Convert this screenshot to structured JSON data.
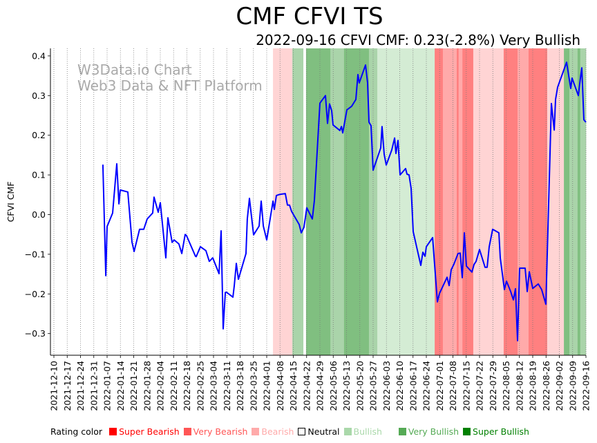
{
  "chart_data": {
    "type": "line",
    "title": "CMF CFVI TS",
    "subtitle": "2022-09-16 CFVI CMF: 0.23(-2.8%) Very Bullish",
    "watermark": [
      "W3Data.io Chart",
      "Web3 Data & NFT Platform"
    ],
    "ylabel": "CFVI CMF",
    "xlabel": "",
    "ylim": [
      -0.355,
      0.418
    ],
    "yticks": [
      "0.4",
      "0.3",
      "0.2",
      "0.1",
      "0.0",
      "−0.1",
      "−0.2",
      "−0.3"
    ],
    "ytick_values": [
      0.4,
      0.3,
      0.2,
      0.1,
      0.0,
      -0.1,
      -0.2,
      -0.3
    ],
    "x_origin": "2021-12-10",
    "x_unit": "days since x_origin",
    "xlim": [
      -1.8,
      280
    ],
    "xticks": [
      "2021-12-10",
      "2021-12-17",
      "2021-12-24",
      "2021-12-31",
      "2022-01-07",
      "2022-01-14",
      "2022-01-21",
      "2022-01-28",
      "2022-02-04",
      "2022-02-11",
      "2022-02-18",
      "2022-02-25",
      "2022-03-04",
      "2022-03-11",
      "2022-03-18",
      "2022-03-25",
      "2022-04-01",
      "2022-04-08",
      "2022-04-15",
      "2022-04-22",
      "2022-04-29",
      "2022-05-06",
      "2022-05-13",
      "2022-05-20",
      "2022-05-27",
      "2022-06-03",
      "2022-06-10",
      "2022-06-17",
      "2022-06-24",
      "2022-07-01",
      "2022-07-08",
      "2022-07-15",
      "2022-07-22",
      "2022-07-29",
      "2022-08-05",
      "2022-08-12",
      "2022-08-19",
      "2022-08-26",
      "2022-09-02",
      "2022-09-09",
      "2022-09-16"
    ],
    "xgrid": "dotted vertical",
    "series": [
      {
        "name": "CFVI CMF",
        "color": "#0000ff",
        "points": [
          [
            25.8,
            0.126
          ],
          [
            27.3,
            -0.154
          ],
          [
            28,
            -0.03
          ],
          [
            30.9,
            0.004
          ],
          [
            33.1,
            0.128
          ],
          [
            34.2,
            0.027
          ],
          [
            34.9,
            0.062
          ],
          [
            38.9,
            0.057
          ],
          [
            41.1,
            -0.069
          ],
          [
            42.2,
            -0.093
          ],
          [
            45.1,
            -0.037
          ],
          [
            47.3,
            -0.037
          ],
          [
            49.1,
            -0.011
          ],
          [
            52,
            0.004
          ],
          [
            52.7,
            0.044
          ],
          [
            54.9,
            0.006
          ],
          [
            56,
            0.03
          ],
          [
            58.9,
            -0.109
          ],
          [
            60,
            -0.008
          ],
          [
            62.2,
            -0.07
          ],
          [
            63.3,
            -0.064
          ],
          [
            65.8,
            -0.074
          ],
          [
            67.3,
            -0.098
          ],
          [
            69.1,
            -0.05
          ],
          [
            69.8,
            -0.053
          ],
          [
            74.5,
            -0.105
          ],
          [
            74.9,
            -0.106
          ],
          [
            77.1,
            -0.081
          ],
          [
            80,
            -0.091
          ],
          [
            81.8,
            -0.118
          ],
          [
            83.6,
            -0.109
          ],
          [
            86.9,
            -0.149
          ],
          [
            88,
            -0.041
          ],
          [
            89.1,
            -0.288
          ],
          [
            90.2,
            -0.196
          ],
          [
            90.9,
            -0.196
          ],
          [
            94.2,
            -0.208
          ],
          [
            94.9,
            -0.18
          ],
          [
            96,
            -0.123
          ],
          [
            97.1,
            -0.163
          ],
          [
            101.1,
            -0.098
          ],
          [
            101.8,
            -0.011
          ],
          [
            102.9,
            0.041
          ],
          [
            105.1,
            -0.051
          ],
          [
            108,
            -0.029
          ],
          [
            109.1,
            0.034
          ],
          [
            110.2,
            -0.029
          ],
          [
            112,
            -0.064
          ],
          [
            115.3,
            0.034
          ],
          [
            116,
            0.013
          ],
          [
            117.1,
            0.048
          ],
          [
            118.9,
            0.051
          ],
          [
            121.8,
            0.053
          ],
          [
            122.9,
            0.024
          ],
          [
            124,
            0.024
          ],
          [
            125.1,
            0.008
          ],
          [
            129.1,
            -0.025
          ],
          [
            130.2,
            -0.046
          ],
          [
            131.6,
            -0.032
          ],
          [
            133.1,
            0.017
          ],
          [
            136,
            -0.011
          ],
          [
            137.1,
            0.036
          ],
          [
            140,
            0.281
          ],
          [
            142.9,
            0.3
          ],
          [
            144,
            0.23
          ],
          [
            145.1,
            0.279
          ],
          [
            146.2,
            0.262
          ],
          [
            146.9,
            0.226
          ],
          [
            150.5,
            0.212
          ],
          [
            151.3,
            0.222
          ],
          [
            152,
            0.206
          ],
          [
            154.2,
            0.264
          ],
          [
            156.7,
            0.273
          ],
          [
            158.9,
            0.29
          ],
          [
            160,
            0.353
          ],
          [
            160.7,
            0.332
          ],
          [
            164,
            0.377
          ],
          [
            165.1,
            0.332
          ],
          [
            165.8,
            0.233
          ],
          [
            166.9,
            0.224
          ],
          [
            168,
            0.112
          ],
          [
            172,
            0.168
          ],
          [
            172.7,
            0.222
          ],
          [
            173.8,
            0.152
          ],
          [
            174.9,
            0.125
          ],
          [
            177.8,
            0.163
          ],
          [
            179.3,
            0.193
          ],
          [
            180,
            0.154
          ],
          [
            181.1,
            0.187
          ],
          [
            182.2,
            0.1
          ],
          [
            185.1,
            0.116
          ],
          [
            185.8,
            0.102
          ],
          [
            186.9,
            0.1
          ],
          [
            188,
            0.066
          ],
          [
            189.1,
            -0.043
          ],
          [
            193.1,
            -0.128
          ],
          [
            194.2,
            -0.095
          ],
          [
            195.3,
            -0.105
          ],
          [
            196,
            -0.081
          ],
          [
            199.3,
            -0.058
          ],
          [
            201.8,
            -0.22
          ],
          [
            202.9,
            -0.199
          ],
          [
            206.9,
            -0.158
          ],
          [
            208,
            -0.179
          ],
          [
            209.1,
            -0.139
          ],
          [
            210.5,
            -0.125
          ],
          [
            212.7,
            -0.098
          ],
          [
            213.8,
            -0.097
          ],
          [
            214.9,
            -0.159
          ],
          [
            216,
            -0.046
          ],
          [
            217.1,
            -0.13
          ],
          [
            220,
            -0.145
          ],
          [
            221.1,
            -0.126
          ],
          [
            222.2,
            -0.118
          ],
          [
            224,
            -0.088
          ],
          [
            226.9,
            -0.133
          ],
          [
            228,
            -0.133
          ],
          [
            229.1,
            -0.081
          ],
          [
            230.9,
            -0.037
          ],
          [
            234.2,
            -0.046
          ],
          [
            234.9,
            -0.109
          ],
          [
            237.1,
            -0.189
          ],
          [
            238.2,
            -0.168
          ],
          [
            240.4,
            -0.194
          ],
          [
            241.8,
            -0.215
          ],
          [
            242.9,
            -0.187
          ],
          [
            244,
            -0.318
          ],
          [
            245.1,
            -0.135
          ],
          [
            248,
            -0.135
          ],
          [
            249.1,
            -0.194
          ],
          [
            250.2,
            -0.144
          ],
          [
            252,
            -0.186
          ],
          [
            254.9,
            -0.175
          ],
          [
            256.7,
            -0.189
          ],
          [
            258.9,
            -0.226
          ],
          [
            261.8,
            0.28
          ],
          [
            263.3,
            0.213
          ],
          [
            264,
            0.29
          ],
          [
            265.1,
            0.321
          ],
          [
            269.8,
            0.384
          ],
          [
            272,
            0.318
          ],
          [
            272.7,
            0.344
          ],
          [
            276,
            0.3
          ],
          [
            277.1,
            0.344
          ],
          [
            277.8,
            0.37
          ],
          [
            278.9,
            0.239
          ],
          [
            280,
            0.233
          ]
        ]
      }
    ],
    "rating_bands": [
      {
        "from": 115.3,
        "to": 125.5,
        "rating": "Bearish"
      },
      {
        "from": 125.5,
        "to": 131.3,
        "rating": "Very Bullish"
      },
      {
        "from": 131.3,
        "to": 132.7,
        "rating": "Neutral"
      },
      {
        "from": 132.7,
        "to": 145.5,
        "rating": "Super Bullish"
      },
      {
        "from": 145.5,
        "to": 152.7,
        "rating": "Very Bullish"
      },
      {
        "from": 152.7,
        "to": 165.8,
        "rating": "Super Bullish"
      },
      {
        "from": 165.8,
        "to": 170.2,
        "rating": "Very Bullish"
      },
      {
        "from": 170.2,
        "to": 200.4,
        "rating": "Bullish"
      },
      {
        "from": 200.4,
        "to": 204.7,
        "rating": "Super Bearish"
      },
      {
        "from": 204.7,
        "to": 212,
        "rating": "Very Bearish"
      },
      {
        "from": 212,
        "to": 213,
        "rating": "Super Bearish"
      },
      {
        "from": 213,
        "to": 215,
        "rating": "Very Bearish"
      },
      {
        "from": 215,
        "to": 220.7,
        "rating": "Super Bearish"
      },
      {
        "from": 220.7,
        "to": 236.7,
        "rating": "Bearish"
      },
      {
        "from": 236.7,
        "to": 244,
        "rating": "Super Bearish"
      },
      {
        "from": 244,
        "to": 249.8,
        "rating": "Very Bearish"
      },
      {
        "from": 249.8,
        "to": 259.6,
        "rating": "Super Bearish"
      },
      {
        "from": 259.6,
        "to": 268.4,
        "rating": "Bearish"
      },
      {
        "from": 268.4,
        "to": 271.3,
        "rating": "Super Bullish"
      },
      {
        "from": 271.3,
        "to": 275.6,
        "rating": "Very Bullish"
      },
      {
        "from": 275.6,
        "to": 277,
        "rating": "Super Bullish"
      },
      {
        "from": 277,
        "to": 280,
        "rating": "Very Bullish"
      }
    ],
    "legend": {
      "placement": "bottom",
      "title": "Rating color",
      "items": [
        {
          "label": "Super Bearish",
          "color": "#ff0000"
        },
        {
          "label": "Very Bearish",
          "color": "#ff5555"
        },
        {
          "label": "Bearish",
          "color": "#ffaaaa"
        },
        {
          "label": "Neutral",
          "color": "#ffffff"
        },
        {
          "label": "Bullish",
          "color": "#aad8aa"
        },
        {
          "label": "Very Bullish",
          "color": "#55aa55"
        },
        {
          "label": "Super Bullish",
          "color": "#008000"
        }
      ]
    }
  }
}
